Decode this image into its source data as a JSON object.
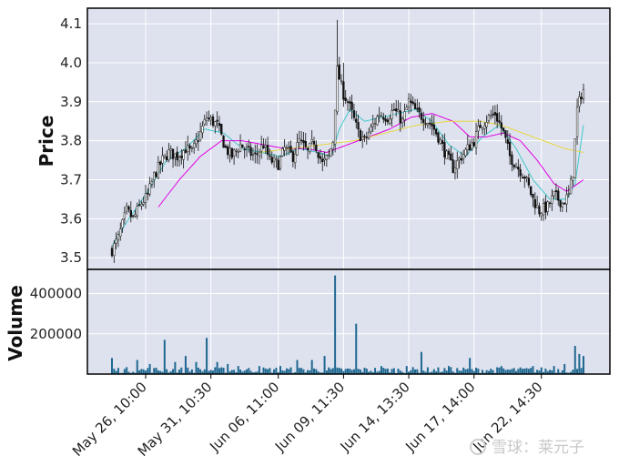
{
  "chart_data": [
    {
      "type": "candlestick",
      "ylabel": "Price",
      "ylim": [
        3.47,
        4.14
      ],
      "yticks": [
        "3.5",
        "3.6",
        "3.7",
        "3.8",
        "3.9",
        "4.0",
        "4.1"
      ],
      "ytick_values": [
        3.5,
        3.6,
        3.7,
        3.8,
        3.9,
        4.0,
        4.1
      ],
      "grid": true,
      "up_color": "#ffffff",
      "down_color": "#111111",
      "anchors_close": [
        [
          0,
          3.52
        ],
        [
          3,
          3.55
        ],
        [
          7,
          3.62
        ],
        [
          10,
          3.6
        ],
        [
          14,
          3.64
        ],
        [
          17,
          3.66
        ],
        [
          20,
          3.71
        ],
        [
          24,
          3.75
        ],
        [
          27,
          3.77
        ],
        [
          31,
          3.76
        ],
        [
          35,
          3.78
        ],
        [
          38,
          3.77
        ],
        [
          42,
          3.82
        ],
        [
          45,
          3.86
        ],
        [
          50,
          3.84
        ],
        [
          54,
          3.78
        ],
        [
          57,
          3.76
        ],
        [
          61,
          3.79
        ],
        [
          65,
          3.77
        ],
        [
          68,
          3.76
        ],
        [
          72,
          3.79
        ],
        [
          75,
          3.75
        ],
        [
          79,
          3.74
        ],
        [
          82,
          3.78
        ],
        [
          86,
          3.76
        ],
        [
          89,
          3.8
        ],
        [
          93,
          3.77
        ],
        [
          96,
          3.8
        ],
        [
          100,
          3.74
        ],
        [
          103,
          3.76
        ],
        [
          105,
          3.8
        ],
        [
          107,
          3.98
        ],
        [
          110,
          3.92
        ],
        [
          112,
          3.9
        ],
        [
          114,
          3.87
        ],
        [
          117,
          3.82
        ],
        [
          120,
          3.8
        ],
        [
          124,
          3.84
        ],
        [
          127,
          3.87
        ],
        [
          131,
          3.86
        ],
        [
          134,
          3.88
        ],
        [
          138,
          3.85
        ],
        [
          141,
          3.9
        ],
        [
          145,
          3.87
        ],
        [
          148,
          3.86
        ],
        [
          152,
          3.84
        ],
        [
          155,
          3.81
        ],
        [
          159,
          3.76
        ],
        [
          162,
          3.73
        ],
        [
          166,
          3.76
        ],
        [
          169,
          3.78
        ],
        [
          172,
          3.8
        ],
        [
          175,
          3.84
        ],
        [
          179,
          3.86
        ],
        [
          182,
          3.87
        ],
        [
          186,
          3.82
        ],
        [
          189,
          3.76
        ],
        [
          193,
          3.73
        ],
        [
          196,
          3.71
        ],
        [
          200,
          3.65
        ],
        [
          203,
          3.62
        ],
        [
          207,
          3.63
        ],
        [
          210,
          3.66
        ],
        [
          214,
          3.64
        ],
        [
          217,
          3.66
        ],
        [
          219,
          3.72
        ],
        [
          221,
          3.88
        ],
        [
          223,
          3.92
        ],
        [
          224,
          3.93
        ]
      ],
      "ma_short": [
        [
          0,
          3.53
        ],
        [
          8,
          3.6
        ],
        [
          17,
          3.67
        ],
        [
          26,
          3.75
        ],
        [
          35,
          3.78
        ],
        [
          44,
          3.83
        ],
        [
          53,
          3.82
        ],
        [
          62,
          3.78
        ],
        [
          71,
          3.77
        ],
        [
          80,
          3.76
        ],
        [
          89,
          3.78
        ],
        [
          98,
          3.77
        ],
        [
          104,
          3.76
        ],
        [
          108,
          3.83
        ],
        [
          113,
          3.88
        ],
        [
          120,
          3.85
        ],
        [
          128,
          3.86
        ],
        [
          136,
          3.87
        ],
        [
          144,
          3.88
        ],
        [
          152,
          3.85
        ],
        [
          160,
          3.79
        ],
        [
          168,
          3.76
        ],
        [
          176,
          3.81
        ],
        [
          184,
          3.84
        ],
        [
          192,
          3.78
        ],
        [
          200,
          3.7
        ],
        [
          208,
          3.65
        ],
        [
          216,
          3.65
        ],
        [
          220,
          3.69
        ],
        [
          224,
          3.84
        ]
      ],
      "ma_mid": [
        [
          22,
          3.63
        ],
        [
          32,
          3.7
        ],
        [
          42,
          3.76
        ],
        [
          52,
          3.8
        ],
        [
          62,
          3.8
        ],
        [
          72,
          3.79
        ],
        [
          82,
          3.78
        ],
        [
          92,
          3.78
        ],
        [
          102,
          3.77
        ],
        [
          112,
          3.79
        ],
        [
          122,
          3.81
        ],
        [
          132,
          3.83
        ],
        [
          142,
          3.86
        ],
        [
          152,
          3.87
        ],
        [
          162,
          3.85
        ],
        [
          170,
          3.81
        ],
        [
          178,
          3.81
        ],
        [
          186,
          3.82
        ],
        [
          194,
          3.8
        ],
        [
          202,
          3.75
        ],
        [
          210,
          3.69
        ],
        [
          216,
          3.67
        ],
        [
          224,
          3.7
        ]
      ],
      "ma_long": [
        [
          70,
          3.77
        ],
        [
          85,
          3.78
        ],
        [
          100,
          3.79
        ],
        [
          115,
          3.8
        ],
        [
          130,
          3.82
        ],
        [
          145,
          3.84
        ],
        [
          160,
          3.85
        ],
        [
          175,
          3.85
        ],
        [
          185,
          3.84
        ],
        [
          195,
          3.82
        ],
        [
          205,
          3.8
        ],
        [
          215,
          3.78
        ],
        [
          224,
          3.77
        ]
      ],
      "ma_colors": [
        "#40c8c8",
        "#e000e0",
        "#e8d840"
      ]
    },
    {
      "type": "bar",
      "ylabel": "Volume",
      "ylim": [
        0,
        520000
      ],
      "yticks": [
        "200000",
        "400000"
      ],
      "ytick_values": [
        200000,
        400000
      ],
      "bar_color": "#1f6891",
      "grid": true,
      "spikes": [
        [
          0,
          80000
        ],
        [
          12,
          70000
        ],
        [
          18,
          50000
        ],
        [
          25,
          170000
        ],
        [
          30,
          60000
        ],
        [
          35,
          90000
        ],
        [
          40,
          60000
        ],
        [
          45,
          180000
        ],
        [
          50,
          60000
        ],
        [
          55,
          50000
        ],
        [
          60,
          40000
        ],
        [
          70,
          40000
        ],
        [
          80,
          40000
        ],
        [
          88,
          70000
        ],
        [
          95,
          70000
        ],
        [
          101,
          90000
        ],
        [
          106,
          490000
        ],
        [
          116,
          250000
        ],
        [
          128,
          40000
        ],
        [
          140,
          40000
        ],
        [
          147,
          110000
        ],
        [
          160,
          40000
        ],
        [
          170,
          80000
        ],
        [
          185,
          40000
        ],
        [
          200,
          40000
        ],
        [
          210,
          40000
        ],
        [
          215,
          50000
        ],
        [
          220,
          140000
        ],
        [
          222,
          100000
        ],
        [
          224,
          90000
        ]
      ]
    }
  ],
  "x_axis": {
    "count": 225,
    "ticks": [
      {
        "label": "May 26, 10:00",
        "index": 16
      },
      {
        "label": "May 31, 10:30",
        "index": 47
      },
      {
        "label": "Jun 06, 11:00",
        "index": 79
      },
      {
        "label": "Jun 09, 11:30",
        "index": 110
      },
      {
        "label": "Jun 14, 13:30",
        "index": 141
      },
      {
        "label": "Jun 17, 14:00",
        "index": 172
      },
      {
        "label": "Jun 22, 14:30",
        "index": 204
      }
    ]
  },
  "watermark": {
    "text": "雪球：莱元子"
  },
  "colors": {
    "panel_bg": "#dee2ef",
    "grid": "#ffffff",
    "frame": "#000000"
  }
}
